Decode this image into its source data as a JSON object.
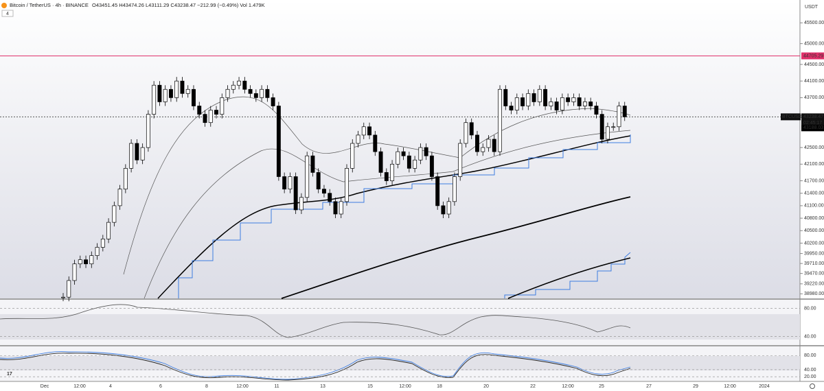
{
  "header": {
    "symbol": "Bitcoin / TetherUS · 4h · BINANCE",
    "ohlc": "O43451.45 H43474.26 L43111.29 C43238.47 −212.99 (−0.49%) Vol 1.479K",
    "indicator_count": "4"
  },
  "price_axis": {
    "currency": "USDT",
    "ylim": [
      38870,
      46050
    ],
    "ticks": [
      {
        "value": 45500,
        "label": "45500.00"
      },
      {
        "value": 45000,
        "label": "45000.00"
      },
      {
        "value": 44500,
        "label": "44500.00"
      },
      {
        "value": 44100,
        "label": "44100.00"
      },
      {
        "value": 43700,
        "label": "43700.00"
      },
      {
        "value": 42500,
        "label": "42500.00"
      },
      {
        "value": 42100,
        "label": "42100.00"
      },
      {
        "value": 41700,
        "label": "41700.00"
      },
      {
        "value": 41400,
        "label": "41400.00"
      },
      {
        "value": 41100,
        "label": "41100.00"
      },
      {
        "value": 40800,
        "label": "40800.00"
      },
      {
        "value": 40500,
        "label": "40500.00"
      },
      {
        "value": 40200,
        "label": "40200.00"
      },
      {
        "value": 39950,
        "label": "39950.00"
      },
      {
        "value": 39710,
        "label": "39710.00"
      },
      {
        "value": 39470,
        "label": "39470.00"
      },
      {
        "value": 39220,
        "label": "39220.00"
      },
      {
        "value": 38980,
        "label": "38980.00"
      }
    ],
    "alert_line": 44705.29,
    "last_price": 43238.47,
    "countdown": "02:45:17",
    "symbol_tag": "BTCUSDT",
    "ma_price": 43188.03
  },
  "candles": {
    "closes": [
      38900,
      39300,
      39700,
      39800,
      39700,
      39900,
      40100,
      40300,
      40700,
      41100,
      41500,
      42000,
      42600,
      42200,
      42500,
      43300,
      44000,
      43600,
      43900,
      43700,
      44100,
      43800,
      43900,
      43500,
      43300,
      43100,
      43400,
      43300,
      43700,
      43900,
      44000,
      44100,
      43900,
      43800,
      43700,
      43900,
      43700,
      43500,
      41800,
      41500,
      41800,
      41000,
      41300,
      42300,
      41900,
      41500,
      41400,
      41200,
      40900,
      41200,
      42000,
      42600,
      42800,
      43000,
      42800,
      42400,
      41900,
      41700,
      42100,
      42400,
      42300,
      42000,
      42200,
      42500,
      42300,
      41800,
      41100,
      40900,
      41200,
      41800,
      42600,
      43100,
      42800,
      42400,
      42500,
      42700,
      42400,
      43900,
      43500,
      43400,
      43700,
      43500,
      43800,
      43600,
      43900,
      43500,
      43600,
      43400,
      43700,
      43600,
      43700,
      43500,
      43600,
      43500,
      43300,
      42700,
      43000,
      43000,
      43500,
      43238.47
    ]
  },
  "rsi_axis": {
    "ylim": [
      27.7,
      92.3
    ],
    "ticks": [
      {
        "value": 80,
        "label": "80.00"
      },
      {
        "value": 40,
        "label": "40.00"
      }
    ]
  },
  "stoch_axis": {
    "ylim": [
      8.75,
      106
    ],
    "ticks": [
      {
        "value": 80,
        "label": "80.00"
      },
      {
        "value": 40,
        "label": "40.00"
      },
      {
        "value": 20,
        "label": "20.00"
      }
    ]
  },
  "time_axis": [
    "Dec",
    "12:00",
    "4",
    "6",
    "8",
    "12:00",
    "11",
    "13",
    "15",
    "12:00",
    "18",
    "20",
    "22",
    "12:00",
    "25",
    "27",
    "29",
    "12:00",
    "2024"
  ]
}
